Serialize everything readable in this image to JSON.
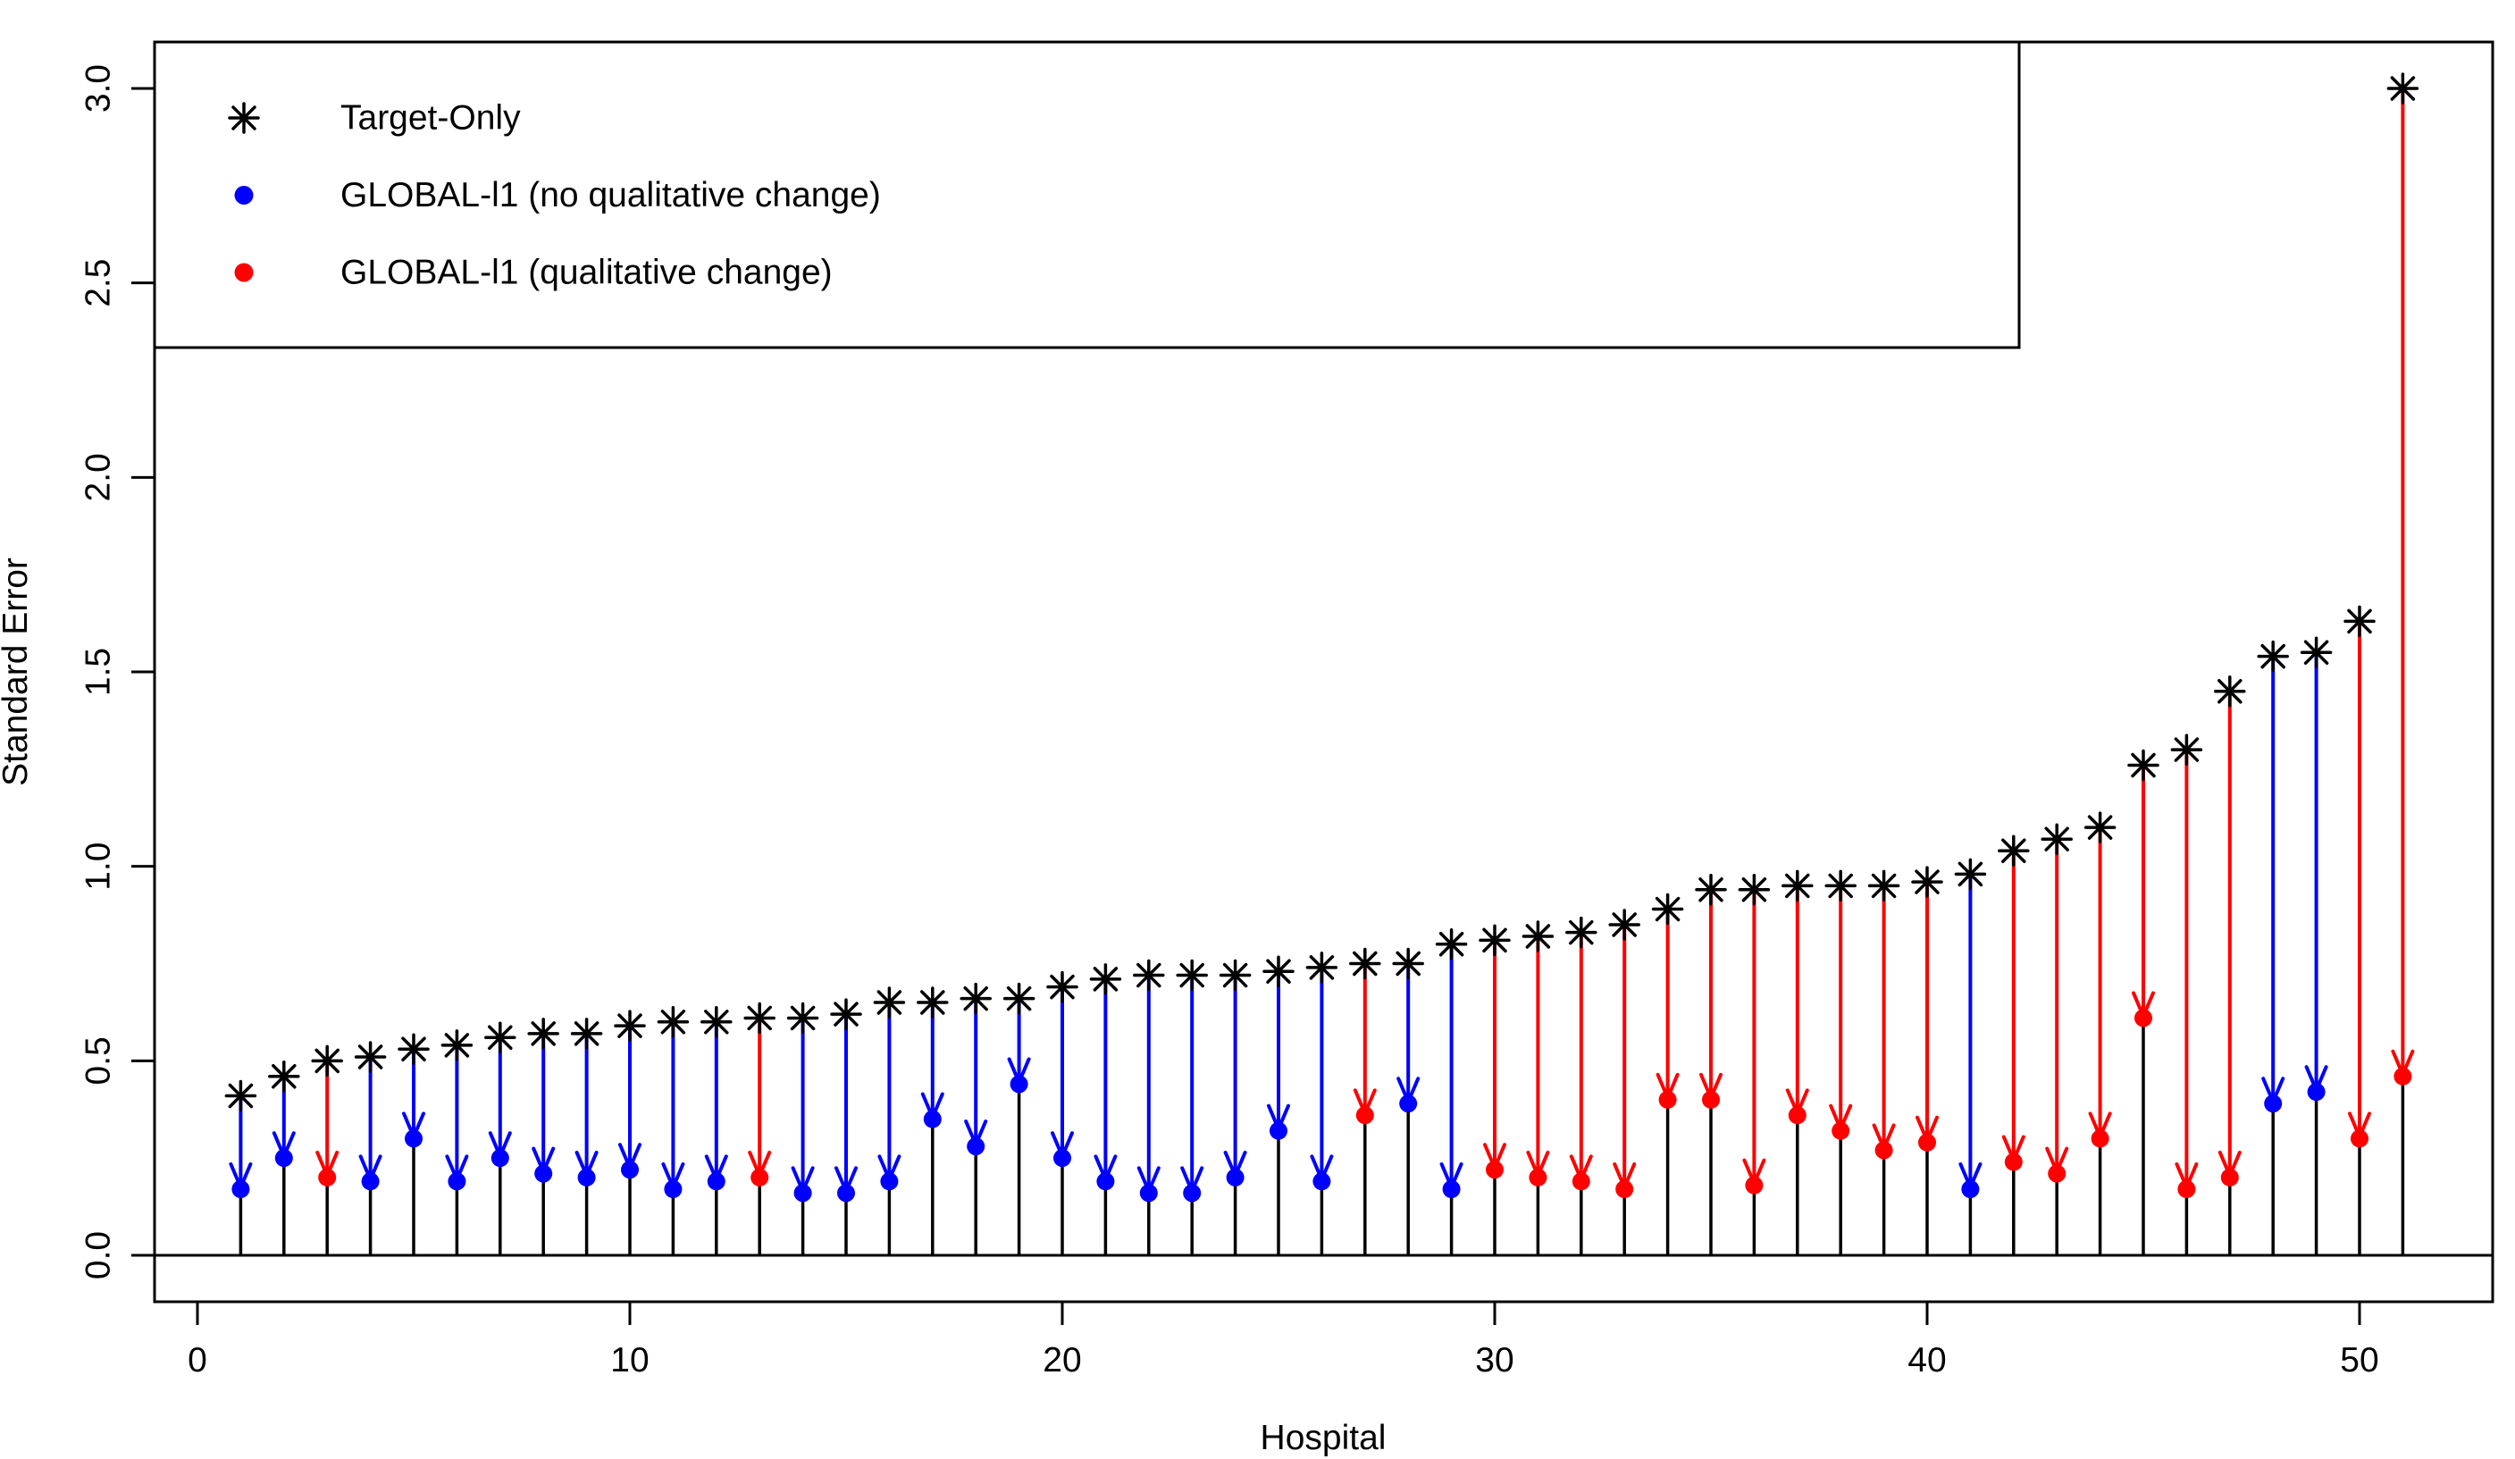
{
  "figure": {
    "background": "#ffffff"
  },
  "colors": {
    "target": "#000000",
    "no_change": "#0000ff",
    "change": "#ff0000",
    "stem": "#000000"
  },
  "axes": {
    "x": {
      "label": "Hospital",
      "tick_labels": [
        "0",
        "10",
        "20",
        "30",
        "40",
        "50"
      ],
      "tick_values": [
        0,
        10,
        20,
        30,
        40,
        50
      ]
    },
    "y": {
      "label": "Standard Error",
      "tick_labels": [
        "0.0",
        "0.5",
        "1.0",
        "1.5",
        "2.0",
        "2.5",
        "3.0"
      ],
      "tick_values": [
        0,
        0.5,
        1,
        1.5,
        2,
        2.5,
        3
      ]
    }
  },
  "legend": {
    "position": "top-left",
    "items": [
      {
        "label": "Target-Only",
        "marker": "asterisk",
        "color": "#000000"
      },
      {
        "label": "GLOBAL-l1 (no qualitative change)",
        "marker": "dot",
        "color": "#0000ff"
      },
      {
        "label": "GLOBAL-l1 (qualitative change)",
        "marker": "dot",
        "color": "#ff0000"
      }
    ]
  },
  "chart_data": {
    "type": "scatter",
    "subtype": "paired stem plot: black asterisk = Target-Only SE, colored dot = GLOBAL-l1 SE, arrow drawn from asterisk down to dot, black stem from 0 to dot",
    "title": "",
    "xlabel": "Hospital",
    "ylabel": "Standard Error",
    "xlim": [
      -1.2,
      53.4
    ],
    "ylim": [
      -0.12,
      3.05
    ],
    "x_ticks": [
      0,
      10,
      20,
      30,
      40,
      50
    ],
    "y_ticks": [
      0,
      0.5,
      1,
      1.5,
      2,
      2.5,
      3
    ],
    "grid": false,
    "legend_position": "top-left",
    "baseline": 0,
    "x": [
      1,
      2,
      3,
      4,
      5,
      6,
      7,
      8,
      9,
      10,
      11,
      12,
      13,
      14,
      15,
      16,
      17,
      18,
      19,
      20,
      21,
      22,
      23,
      24,
      25,
      26,
      27,
      28,
      29,
      30,
      31,
      32,
      33,
      34,
      35,
      36,
      37,
      38,
      39,
      40,
      41,
      42,
      43,
      44,
      45,
      46,
      47,
      48,
      49,
      50,
      51
    ],
    "series": [
      {
        "name": "Target-Only",
        "marker": "asterisk",
        "color": "#000000",
        "values": [
          0.41,
          0.46,
          0.5,
          0.51,
          0.53,
          0.54,
          0.56,
          0.57,
          0.57,
          0.59,
          0.6,
          0.6,
          0.61,
          0.61,
          0.62,
          0.65,
          0.65,
          0.66,
          0.66,
          0.69,
          0.71,
          0.72,
          0.72,
          0.72,
          0.73,
          0.74,
          0.75,
          0.75,
          0.8,
          0.81,
          0.82,
          0.83,
          0.85,
          0.89,
          0.94,
          0.94,
          0.95,
          0.95,
          0.95,
          0.96,
          0.98,
          1.04,
          1.07,
          1.1,
          1.26,
          1.3,
          1.45,
          1.54,
          1.55,
          1.63,
          3.0
        ]
      },
      {
        "name": "GLOBAL-l1",
        "marker": "dot",
        "color_no_change": "#0000ff",
        "color_change": "#ff0000",
        "values": [
          0.17,
          0.25,
          0.2,
          0.19,
          0.3,
          0.19,
          0.25,
          0.21,
          0.2,
          0.22,
          0.17,
          0.19,
          0.2,
          0.16,
          0.16,
          0.19,
          0.35,
          0.28,
          0.44,
          0.25,
          0.19,
          0.16,
          0.16,
          0.2,
          0.32,
          0.19,
          0.36,
          0.39,
          0.17,
          0.22,
          0.2,
          0.19,
          0.17,
          0.4,
          0.4,
          0.18,
          0.36,
          0.32,
          0.27,
          0.29,
          0.17,
          0.24,
          0.21,
          0.3,
          0.61,
          0.17,
          0.2,
          0.39,
          0.42,
          0.3,
          0.46
        ],
        "qualitative_change": [
          false,
          false,
          true,
          false,
          false,
          false,
          false,
          false,
          false,
          false,
          false,
          false,
          true,
          false,
          false,
          false,
          false,
          false,
          false,
          false,
          false,
          false,
          false,
          false,
          false,
          false,
          true,
          false,
          false,
          true,
          true,
          true,
          true,
          true,
          true,
          true,
          true,
          true,
          true,
          true,
          false,
          true,
          true,
          true,
          true,
          true,
          true,
          false,
          false,
          true,
          true
        ]
      }
    ]
  }
}
